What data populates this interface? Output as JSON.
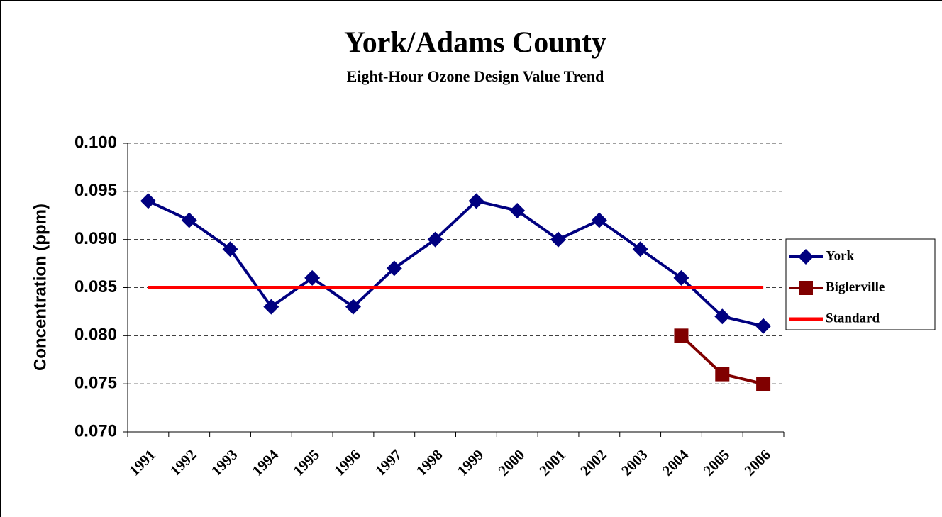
{
  "chart_data": {
    "type": "line",
    "title": "York/Adams County",
    "subtitle": "Eight-Hour Ozone Design Value Trend",
    "ylabel": "Concentration (ppm)",
    "categories": [
      "1991",
      "1992",
      "1993",
      "1994",
      "1995",
      "1996",
      "1997",
      "1998",
      "1999",
      "2000",
      "2001",
      "2002",
      "2003",
      "2004",
      "2005",
      "2006"
    ],
    "series": [
      {
        "name": "York",
        "color": "#000080",
        "marker": "diamond",
        "values": [
          0.094,
          0.092,
          0.089,
          0.083,
          0.086,
          0.083,
          0.087,
          0.09,
          0.094,
          0.093,
          0.09,
          0.092,
          0.089,
          0.086,
          0.082,
          0.081
        ]
      },
      {
        "name": "Biglerville",
        "color": "#800000",
        "marker": "square",
        "values": [
          null,
          null,
          null,
          null,
          null,
          null,
          null,
          null,
          null,
          null,
          null,
          null,
          null,
          0.08,
          0.076,
          0.075
        ]
      },
      {
        "name": "Standard",
        "color": "#ff0000",
        "marker": "none",
        "values": [
          0.085,
          0.085,
          0.085,
          0.085,
          0.085,
          0.085,
          0.085,
          0.085,
          0.085,
          0.085,
          0.085,
          0.085,
          0.085,
          0.085,
          0.085,
          0.085
        ]
      }
    ],
    "ylim": [
      0.07,
      0.1
    ],
    "yticks": [
      {
        "value": 0.07,
        "label": "0.070"
      },
      {
        "value": 0.075,
        "label": "0.075"
      },
      {
        "value": 0.08,
        "label": "0.080"
      },
      {
        "value": 0.085,
        "label": "0.085"
      },
      {
        "value": 0.09,
        "label": "0.090"
      },
      {
        "value": 0.095,
        "label": "0.095"
      },
      {
        "value": 0.1,
        "label": "0.100"
      }
    ],
    "grid": true,
    "legend": "right"
  }
}
